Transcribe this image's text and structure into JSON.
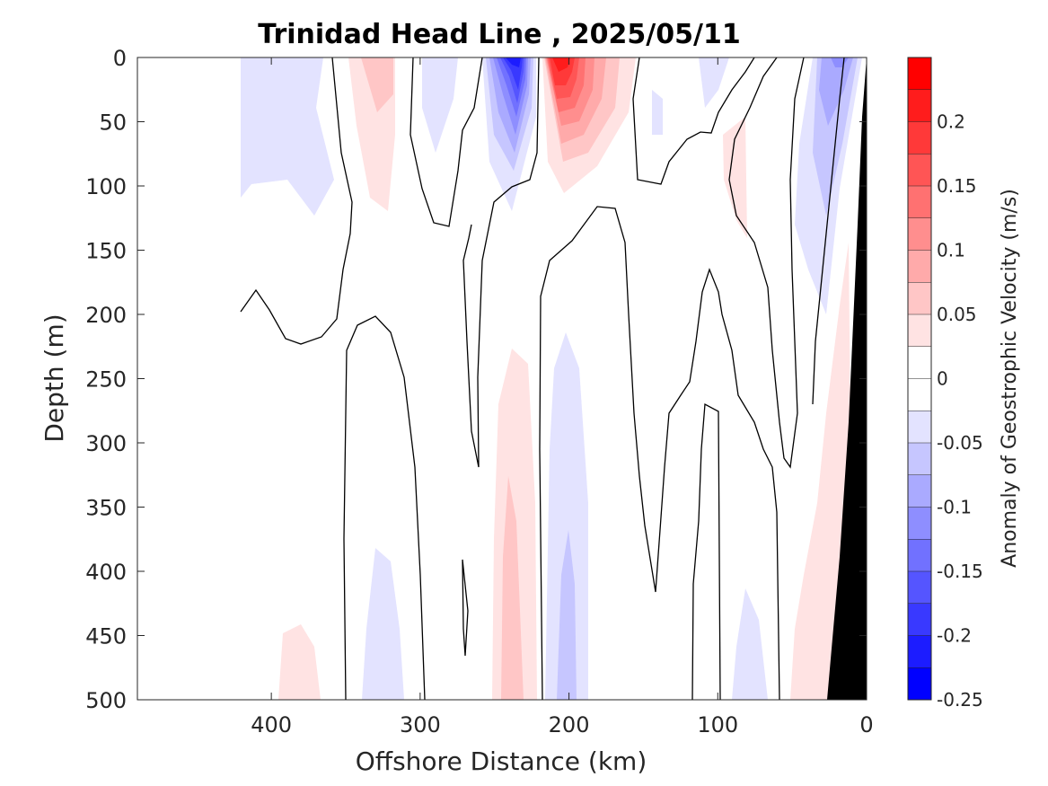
{
  "chart_data": {
    "type": "contourf",
    "title": "Trinidad Head Line , 2025/05/11",
    "xlabel": "Offshore Distance (km)",
    "ylabel": "Depth (m)",
    "xlim": [
      490,
      0
    ],
    "ylim": [
      0,
      500
    ],
    "x_ticks": [
      "400",
      "300",
      "200",
      "100",
      "0"
    ],
    "y_ticks": [
      "0",
      "50",
      "100",
      "150",
      "200",
      "250",
      "300",
      "350",
      "400",
      "450",
      "500"
    ],
    "colorbar": {
      "label": "Anomaly of Geostrophic Velocity (m/s)",
      "range": [
        -0.25,
        0.25
      ],
      "tick_labels": [
        "0.2",
        "0.15",
        "0.1",
        "0.05",
        "0",
        "-0.05",
        "-0.1",
        "-0.15",
        "-0.2",
        "-0.25"
      ],
      "levels": [
        {
          "lo": 0.225,
          "hi": 0.25,
          "color": "#ff0000"
        },
        {
          "lo": 0.2,
          "hi": 0.225,
          "color": "#ff1c1c"
        },
        {
          "lo": 0.175,
          "hi": 0.2,
          "color": "#ff3939"
        },
        {
          "lo": 0.15,
          "hi": 0.175,
          "color": "#ff5555"
        },
        {
          "lo": 0.125,
          "hi": 0.15,
          "color": "#ff7171"
        },
        {
          "lo": 0.1,
          "hi": 0.125,
          "color": "#ff8e8e"
        },
        {
          "lo": 0.075,
          "hi": 0.1,
          "color": "#ffaaaa"
        },
        {
          "lo": 0.05,
          "hi": 0.075,
          "color": "#ffc6c6"
        },
        {
          "lo": 0.025,
          "hi": 0.05,
          "color": "#ffe3e3"
        },
        {
          "lo": 0.0,
          "hi": 0.025,
          "color": "#ffffff"
        },
        {
          "lo": -0.025,
          "hi": 0.0,
          "color": "#ffffff"
        },
        {
          "lo": -0.05,
          "hi": -0.025,
          "color": "#e3e3ff"
        },
        {
          "lo": -0.075,
          "hi": -0.05,
          "color": "#c6c6ff"
        },
        {
          "lo": -0.1,
          "hi": -0.075,
          "color": "#aaaaff"
        },
        {
          "lo": -0.125,
          "hi": -0.1,
          "color": "#8e8eff"
        },
        {
          "lo": -0.15,
          "hi": -0.125,
          "color": "#7171ff"
        },
        {
          "lo": -0.175,
          "hi": -0.15,
          "color": "#5555ff"
        },
        {
          "lo": -0.2,
          "hi": -0.175,
          "color": "#3939ff"
        },
        {
          "lo": -0.225,
          "hi": -0.2,
          "color": "#1c1cff"
        },
        {
          "lo": -0.25,
          "hi": -0.225,
          "color": "#0000ff"
        }
      ]
    },
    "anomaly_cores": [
      {
        "sign": "negative",
        "x_km": 233,
        "depth_m": 15,
        "peak": -0.22
      },
      {
        "sign": "positive",
        "x_km": 203,
        "depth_m": 15,
        "peak": 0.2
      },
      {
        "sign": "negative",
        "x_km": 25,
        "depth_m": 40,
        "peak": -0.09
      },
      {
        "sign": "positive",
        "x_km": 235,
        "depth_m": 440,
        "peak": 0.07
      },
      {
        "sign": "negative",
        "x_km": 200,
        "depth_m": 470,
        "peak": -0.07
      }
    ],
    "bathymetry": {
      "color": "#000000",
      "description_points": [
        [
          0,
          0
        ],
        [
          0,
          500
        ],
        [
          28,
          500
        ]
      ]
    }
  }
}
